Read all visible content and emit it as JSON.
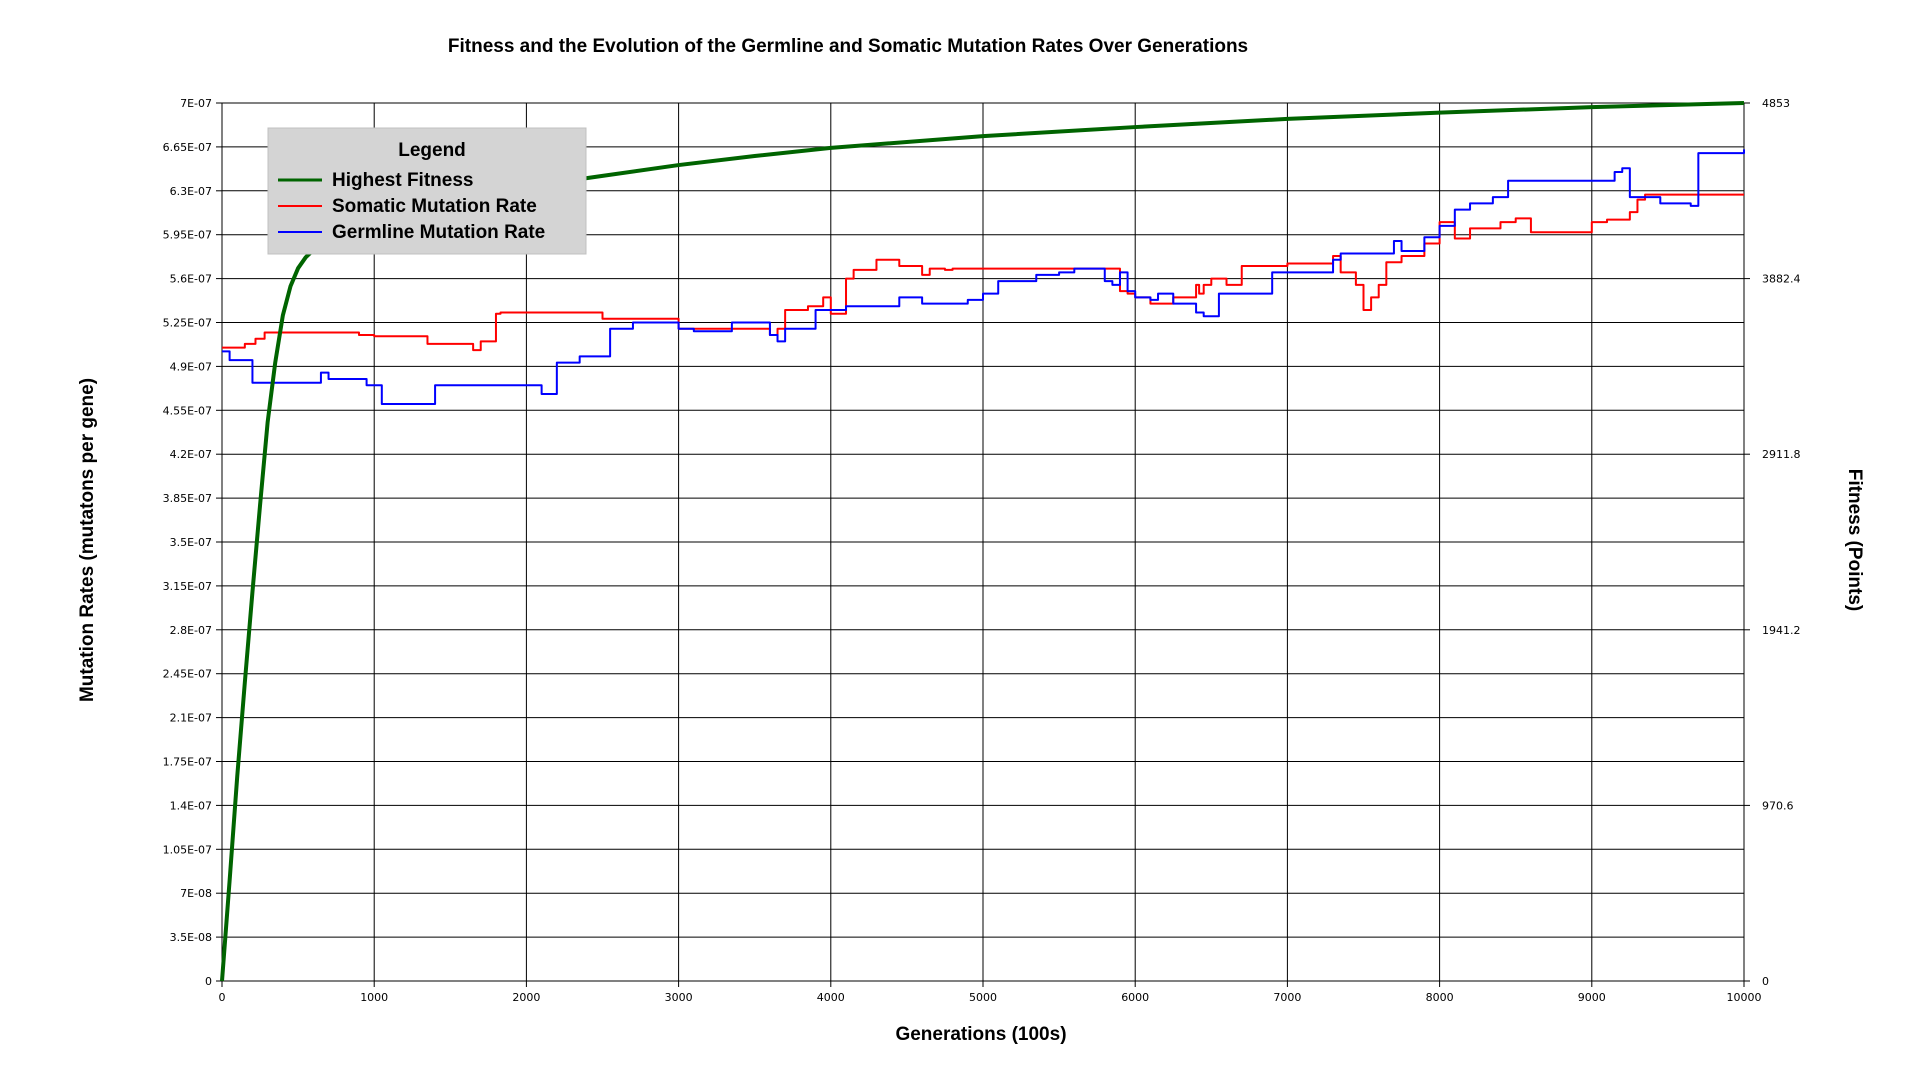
{
  "chart_data": {
    "type": "line",
    "title": "Fitness and the Evolution of the Germline and Somatic Mutation Rates Over Generations",
    "xlabel": "Generations (100s)",
    "ylabel_left": "Mutation Rates (mutatons per gene)",
    "ylabel_right": "Fitness (Points)",
    "xlim": [
      0,
      10000
    ],
    "ylim_left": [
      0,
      7e-07
    ],
    "ylim_right": [
      0,
      4853
    ],
    "grid": true,
    "legend_placement": "top-left",
    "x_ticks": [
      "0",
      "1000",
      "2000",
      "3000",
      "4000",
      "5000",
      "6000",
      "7000",
      "8000",
      "9000",
      "10000"
    ],
    "y_ticks_left": [
      "0",
      "3.5E-08",
      "7E-08",
      "1.05E-07",
      "1.4E-07",
      "1.75E-07",
      "2.1E-07",
      "2.45E-07",
      "2.8E-07",
      "3.15E-07",
      "3.5E-07",
      "3.85E-07",
      "4.2E-07",
      "4.55E-07",
      "4.9E-07",
      "5.25E-07",
      "5.6E-07",
      "5.95E-07",
      "6.3E-07",
      "6.65E-07",
      "7E-07"
    ],
    "y_ticks_right": [
      "0",
      "970.6",
      "1941.2",
      "2911.8",
      "3882.4",
      "4853"
    ],
    "legend": {
      "title": "Legend",
      "entries": [
        "Highest Fitness",
        "Somatic Mutation Rate",
        "Germline Mutation Rate"
      ]
    },
    "series": [
      {
        "name": "Highest Fitness",
        "axis": "right",
        "color": "#006400",
        "step": false,
        "x": [
          0,
          25,
          50,
          100,
          150,
          200,
          250,
          300,
          350,
          400,
          450,
          500,
          550,
          600,
          650,
          700,
          800,
          900,
          1000,
          1200,
          1500,
          2000,
          2500,
          3000,
          3500,
          4000,
          5000,
          6000,
          7000,
          8000,
          9000,
          10000
        ],
        "y": [
          0,
          277,
          555,
          1130,
          1650,
          2150,
          2630,
          3090,
          3420,
          3680,
          3840,
          3940,
          4000,
          4040,
          4075,
          4100,
          4140,
          4180,
          4215,
          4260,
          4320,
          4390,
          4450,
          4510,
          4560,
          4605,
          4670,
          4720,
          4765,
          4800,
          4830,
          4853
        ]
      },
      {
        "name": "Somatic Mutation Rate",
        "axis": "left",
        "color": "#ff0000",
        "step": true,
        "x": [
          0,
          150,
          220,
          280,
          900,
          1000,
          1350,
          1650,
          1700,
          1800,
          1830,
          2500,
          3000,
          3600,
          3650,
          3700,
          3850,
          3950,
          4000,
          4100,
          4150,
          4300,
          4450,
          4600,
          4650,
          4750,
          4800,
          5000,
          5900,
          5950,
          6000,
          6100,
          6250,
          6400,
          6420,
          6450,
          6500,
          6600,
          6700,
          6900,
          7000,
          7300,
          7350,
          7450,
          7500,
          7550,
          7600,
          7650,
          7750,
          7900,
          8000,
          8100,
          8200,
          8400,
          8500,
          8600,
          9000,
          9100,
          9250,
          9300,
          9350,
          10000
        ],
        "y": [
          5.05e-07,
          5.08e-07,
          5.12e-07,
          5.17e-07,
          5.15e-07,
          5.14e-07,
          5.08e-07,
          5.03e-07,
          5.1e-07,
          5.32e-07,
          5.33e-07,
          5.28e-07,
          5.2e-07,
          5.15e-07,
          5.2e-07,
          5.35e-07,
          5.38e-07,
          5.45e-07,
          5.32e-07,
          5.6e-07,
          5.67e-07,
          5.75e-07,
          5.7e-07,
          5.63e-07,
          5.68e-07,
          5.67e-07,
          5.68e-07,
          5.68e-07,
          5.5e-07,
          5.48e-07,
          5.45e-07,
          5.4e-07,
          5.45e-07,
          5.55e-07,
          5.48e-07,
          5.55e-07,
          5.6e-07,
          5.55e-07,
          5.7e-07,
          5.7e-07,
          5.72e-07,
          5.78e-07,
          5.65e-07,
          5.55e-07,
          5.35e-07,
          5.45e-07,
          5.55e-07,
          5.73e-07,
          5.78e-07,
          5.88e-07,
          6.05e-07,
          5.92e-07,
          6e-07,
          6.05e-07,
          6.08e-07,
          5.97e-07,
          6.05e-07,
          6.07e-07,
          6.13e-07,
          6.23e-07,
          6.27e-07,
          6.27e-07
        ]
      },
      {
        "name": "Germline Mutation Rate",
        "axis": "left",
        "color": "#0000ff",
        "step": true,
        "x": [
          0,
          50,
          200,
          650,
          700,
          950,
          1050,
          1400,
          2100,
          2200,
          2350,
          2550,
          2700,
          3000,
          3100,
          3350,
          3600,
          3650,
          3700,
          3900,
          4050,
          4100,
          4450,
          4600,
          4900,
          5000,
          5100,
          5350,
          5500,
          5600,
          5800,
          5850,
          5900,
          5950,
          6000,
          6100,
          6150,
          6250,
          6400,
          6450,
          6550,
          6600,
          6900,
          7300,
          7350,
          7700,
          7750,
          7900,
          8000,
          8100,
          8200,
          8350,
          8450,
          8600,
          9150,
          9200,
          9250,
          9450,
          9650,
          9700,
          10000
        ],
        "y": [
          5.02e-07,
          4.95e-07,
          4.77e-07,
          4.85e-07,
          4.8e-07,
          4.75e-07,
          4.6e-07,
          4.75e-07,
          4.68e-07,
          4.93e-07,
          4.98e-07,
          5.2e-07,
          5.25e-07,
          5.2e-07,
          5.18e-07,
          5.25e-07,
          5.15e-07,
          5.1e-07,
          5.2e-07,
          5.35e-07,
          5.35e-07,
          5.38e-07,
          5.45e-07,
          5.4e-07,
          5.43e-07,
          5.48e-07,
          5.58e-07,
          5.63e-07,
          5.65e-07,
          5.68e-07,
          5.58e-07,
          5.55e-07,
          5.65e-07,
          5.5e-07,
          5.45e-07,
          5.43e-07,
          5.48e-07,
          5.4e-07,
          5.33e-07,
          5.3e-07,
          5.48e-07,
          5.48e-07,
          5.65e-07,
          5.75e-07,
          5.8e-07,
          5.9e-07,
          5.82e-07,
          5.93e-07,
          6.02e-07,
          6.15e-07,
          6.2e-07,
          6.25e-07,
          6.38e-07,
          6.38e-07,
          6.45e-07,
          6.48e-07,
          6.25e-07,
          6.2e-07,
          6.18e-07,
          6.6e-07,
          6.63e-07
        ]
      }
    ]
  }
}
